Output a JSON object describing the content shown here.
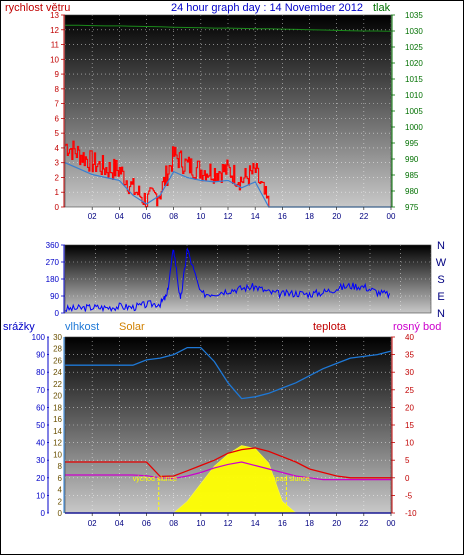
{
  "header": {
    "title": "24 hour graph day : 14 November 2012",
    "wind_label": "rychlost větru",
    "pressure_label": "tlak"
  },
  "colors": {
    "wind": "#ff0000",
    "wind_avg": "#3a7fd0",
    "pressure": "#1a8a1a",
    "direction": "#0000ff",
    "humidity": "#1e78d6",
    "solar": "#ffff00",
    "temperature": "#e60000",
    "dewpoint": "#cc00cc",
    "rain": "#0000cc",
    "title": "#0000c8",
    "left_axis": "#c00000",
    "right_axis_1": "#007000",
    "panel_top": "#000000",
    "panel_bottom": "#c8c8c8"
  },
  "x_axis": {
    "ticks": [
      "02",
      "04",
      "06",
      "08",
      "10",
      "12",
      "14",
      "16",
      "18",
      "20",
      "22",
      "00"
    ]
  },
  "chart_data": [
    {
      "type": "line",
      "title": "24 hour graph day : 14 November 2012",
      "ylabel": "rychlost větru",
      "y2label": "tlak",
      "ylim": [
        0,
        13
      ],
      "y_ticks": [
        "0",
        "1",
        "2",
        "3",
        "4",
        "5",
        "6",
        "7",
        "8",
        "9",
        "10",
        "11",
        "12",
        "13"
      ],
      "y2lim": [
        975,
        1035
      ],
      "y2_ticks": [
        "975",
        "980",
        "985",
        "990",
        "995",
        "1000",
        "1005",
        "1010",
        "1015",
        "1020",
        "1025",
        "1030",
        "1035"
      ],
      "x": [
        0,
        1,
        2,
        3,
        4,
        5,
        6,
        7,
        8,
        9,
        10,
        11,
        12,
        13,
        14,
        15,
        16,
        17,
        18,
        19,
        20,
        21,
        22,
        23,
        24
      ],
      "series": [
        {
          "key": "wind_gust",
          "values": [
            4.2,
            3.6,
            3.0,
            2.6,
            2.5,
            1.2,
            0.4,
            1.0,
            3.5,
            2.8,
            2.5,
            2.4,
            2.5,
            1.8,
            2.4,
            0,
            0,
            0,
            0,
            0,
            0,
            0,
            0,
            0,
            0
          ]
        },
        {
          "key": "wind_avg",
          "values": [
            3.0,
            2.6,
            2.2,
            2.0,
            1.8,
            0.8,
            0.2,
            0.8,
            2.4,
            2.0,
            1.8,
            1.7,
            1.8,
            1.3,
            1.7,
            0,
            0,
            0,
            0,
            0,
            0,
            0,
            0,
            0,
            0
          ]
        },
        {
          "key": "pressure",
          "values": [
            1031.8,
            1031.8,
            1031.7,
            1031.6,
            1031.6,
            1031.5,
            1031.4,
            1031.3,
            1031.2,
            1031.1,
            1031.0,
            1030.9,
            1030.9,
            1030.8,
            1030.7,
            1030.7,
            1030.6,
            1030.5,
            1030.4,
            1030.3,
            1030.2,
            1030.1,
            1030.0,
            1030.0,
            1029.9
          ]
        }
      ]
    },
    {
      "type": "line",
      "ylim": [
        0,
        360
      ],
      "y_ticks": [
        "0",
        "90",
        "180",
        "270",
        "360"
      ],
      "direction_labels": [
        "N",
        "W",
        "S",
        "E",
        "N"
      ],
      "x": [
        0,
        1,
        2,
        3,
        4,
        5,
        6,
        7,
        7.5,
        8,
        8.5,
        9,
        10,
        11,
        12,
        13,
        14,
        15,
        16,
        17,
        18,
        19,
        20,
        21,
        22,
        23,
        24
      ],
      "series": [
        {
          "key": "wind_direction",
          "values": [
            20,
            25,
            30,
            28,
            35,
            30,
            45,
            50,
            90,
            345,
            60,
            340,
            100,
            105,
            120,
            130,
            140,
            110,
            100,
            105,
            100,
            110,
            130,
            145,
            140,
            110,
            95
          ]
        }
      ]
    },
    {
      "type": "line",
      "labels": {
        "rain": "srážky",
        "humidity": "vlhkost",
        "solar": "Solar",
        "temperature": "teplota",
        "dewpoint": "rosný bod"
      },
      "rain_ylim": [
        0,
        100
      ],
      "rain_ticks": [
        "0",
        "10",
        "20",
        "30",
        "40",
        "50",
        "60",
        "70",
        "80",
        "90",
        "100"
      ],
      "solar_ylim": [
        0,
        30
      ],
      "solar_ticks": [
        "0",
        "2",
        "4",
        "6",
        "8",
        "10",
        "12",
        "14",
        "16",
        "18",
        "20",
        "22",
        "24",
        "26",
        "28",
        "30"
      ],
      "temp_ylim": [
        -10,
        40
      ],
      "temp_ticks": [
        "-10",
        "-5",
        "0",
        "5",
        "10",
        "15",
        "20",
        "25",
        "30",
        "35",
        "40"
      ],
      "x": [
        0,
        1,
        2,
        3,
        4,
        5,
        6,
        7,
        8,
        9,
        10,
        11,
        12,
        13,
        14,
        15,
        16,
        17,
        18,
        19,
        20,
        21,
        22,
        23,
        24
      ],
      "series": [
        {
          "key": "humidity",
          "values": [
            84,
            84,
            84,
            84,
            84,
            84,
            87,
            88,
            90,
            94,
            94,
            86,
            74,
            65,
            66,
            68,
            71,
            74,
            78,
            82,
            85,
            88,
            89,
            90,
            92
          ]
        },
        {
          "key": "temperature",
          "values": [
            4.5,
            4.5,
            4.5,
            4.5,
            4.5,
            4.5,
            4.5,
            0.4,
            0.5,
            2.0,
            3.5,
            5.0,
            7.0,
            8.0,
            8.5,
            7.5,
            6.0,
            4.5,
            2.5,
            1.5,
            0.5,
            0.0,
            0.0,
            0.0,
            0.0
          ]
        },
        {
          "key": "dewpoint",
          "values": [
            0.8,
            0.8,
            0.8,
            0.8,
            0.8,
            0.8,
            0.6,
            0.0,
            -0.2,
            0.5,
            1.5,
            2.8,
            3.8,
            4.5,
            3.5,
            2.5,
            1.5,
            0.5,
            0.0,
            -0.5,
            -0.5,
            -0.5,
            -0.5,
            -0.5,
            -0.5
          ]
        },
        {
          "key": "solar",
          "values": [
            0,
            0,
            0,
            0,
            0,
            0,
            0,
            0,
            0,
            2,
            5,
            8,
            10,
            11.5,
            11,
            8.5,
            2,
            0,
            0,
            0,
            0,
            0,
            0,
            0,
            0
          ]
        },
        {
          "key": "rain",
          "values": [
            0,
            0,
            0,
            0,
            0,
            0,
            0,
            0,
            0,
            0,
            0,
            0,
            0,
            0,
            0,
            0,
            0,
            0,
            0,
            0,
            0,
            0,
            0,
            0,
            0
          ]
        }
      ],
      "annotations": [
        {
          "text": "východ slunce",
          "hour": 6.9
        },
        {
          "text": "západ slunce",
          "hour": 16.3
        }
      ]
    }
  ]
}
